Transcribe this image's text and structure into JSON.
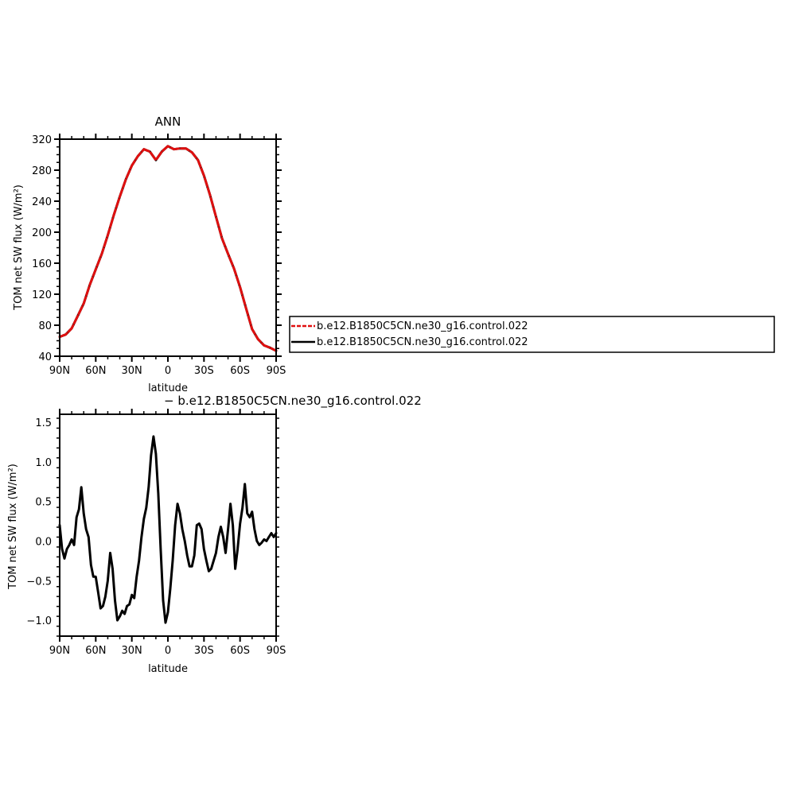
{
  "chart_data": [
    {
      "type": "line",
      "title": "ANN",
      "xlabel": "latitude",
      "ylabel": "TOM net SW flux (W/m²)",
      "xlim": [
        90,
        -90
      ],
      "ylim": [
        40,
        320
      ],
      "x_tick_values": [
        90,
        60,
        30,
        0,
        -30,
        -60,
        -90
      ],
      "x_tick_labels": [
        "90N",
        "60N",
        "30N",
        "0",
        "30S",
        "60S",
        "90S"
      ],
      "y_tick_values": [
        40,
        80,
        120,
        160,
        200,
        240,
        280,
        320
      ],
      "y_tick_labels": [
        "40",
        "80",
        "120",
        "160",
        "200",
        "240",
        "280",
        "320"
      ],
      "legend_placement": "right",
      "series": [
        {
          "name": "b.e12.B1850C5CN.ne30_g16.control.022",
          "color": "#e01010",
          "dash": "dashed",
          "x": [
            90,
            85,
            80,
            75,
            70,
            65,
            60,
            55,
            50,
            45,
            40,
            35,
            30,
            25,
            20,
            15,
            10,
            5,
            0,
            -5,
            -10,
            -15,
            -20,
            -25,
            -30,
            -35,
            -40,
            -45,
            -50,
            -55,
            -60,
            -65,
            -70,
            -75,
            -80,
            -85,
            -90
          ],
          "values": [
            65,
            68,
            76,
            92,
            108,
            132,
            152,
            172,
            196,
            222,
            246,
            268,
            286,
            298,
            307,
            304,
            293,
            304,
            311,
            307,
            308,
            308,
            303,
            293,
            273,
            248,
            220,
            192,
            172,
            153,
            129,
            102,
            75,
            62,
            54,
            51,
            47
          ]
        },
        {
          "name": "b.e12.B1850C5CN.ne30_g16.control.022",
          "color": "#000000",
          "dash": "solid",
          "x": [
            90,
            85,
            80,
            75,
            70,
            65,
            60,
            55,
            50,
            45,
            40,
            35,
            30,
            25,
            20,
            15,
            10,
            5,
            0,
            -5,
            -10,
            -15,
            -20,
            -25,
            -30,
            -35,
            -40,
            -45,
            -50,
            -55,
            -60,
            -65,
            -70,
            -75,
            -80,
            -85,
            -90
          ],
          "values": [
            65,
            68,
            76,
            92,
            108,
            132,
            152,
            172,
            196,
            222,
            246,
            268,
            286,
            298,
            307,
            304,
            293,
            304,
            311,
            307,
            308,
            308,
            303,
            293,
            273,
            248,
            220,
            192,
            172,
            153,
            129,
            102,
            75,
            62,
            54,
            51,
            47
          ]
        }
      ]
    },
    {
      "type": "line",
      "title": "b.e12.B1850C5CN.ne30_g16.control.022",
      "xlabel": "latitude",
      "ylabel": "TOM net SW flux (W/m²)",
      "xlim": [
        90,
        -90
      ],
      "ylim": [
        -1.2,
        1.6
      ],
      "x_tick_values": [
        90,
        60,
        30,
        0,
        -30,
        -60,
        -90
      ],
      "x_tick_labels": [
        "90N",
        "60N",
        "30N",
        "0",
        "30S",
        "60S",
        "90S"
      ],
      "y_tick_values": [
        -1.0,
        -0.5,
        0.0,
        0.5,
        1.0,
        1.5
      ],
      "y_tick_labels": [
        "−1.0",
        "−0.5",
        "0.0",
        "0.5",
        "1.0",
        "1.5"
      ],
      "series": [
        {
          "name": "b.e12.B1850C5CN.ne30_g16.control.022",
          "color": "#000000",
          "dash": "solid",
          "x": [
            90,
            88,
            86,
            84,
            82,
            80,
            78,
            76,
            74,
            72,
            70,
            68,
            66,
            64,
            62,
            60,
            58,
            56,
            54,
            52,
            50,
            48,
            46,
            44,
            42,
            40,
            38,
            36,
            34,
            32,
            30,
            28,
            26,
            24,
            22,
            20,
            18,
            16,
            14,
            12,
            10,
            8,
            6,
            4,
            2,
            0,
            -2,
            -4,
            -6,
            -8,
            -10,
            -12,
            -14,
            -16,
            -18,
            -20,
            -22,
            -24,
            -26,
            -28,
            -30,
            -32,
            -34,
            -36,
            -38,
            -40,
            -42,
            -44,
            -46,
            -48,
            -50,
            -52,
            -54,
            -56,
            -58,
            -60,
            -62,
            -64,
            -66,
            -68,
            -70,
            -72,
            -74,
            -76,
            -78,
            -80,
            -82,
            -84,
            -86,
            -88,
            -90
          ],
          "values": [
            0.2,
            -0.1,
            -0.22,
            -0.1,
            -0.05,
            0.02,
            -0.05,
            0.3,
            0.4,
            0.68,
            0.35,
            0.15,
            0.05,
            -0.3,
            -0.45,
            -0.45,
            -0.65,
            -0.85,
            -0.82,
            -0.7,
            -0.5,
            -0.15,
            -0.35,
            -0.75,
            -1.0,
            -0.95,
            -0.88,
            -0.92,
            -0.82,
            -0.8,
            -0.68,
            -0.72,
            -0.45,
            -0.25,
            0.05,
            0.28,
            0.42,
            0.68,
            1.08,
            1.32,
            1.1,
            0.6,
            -0.1,
            -0.75,
            -1.03,
            -0.9,
            -0.6,
            -0.25,
            0.2,
            0.47,
            0.35,
            0.15,
            0.0,
            -0.18,
            -0.32,
            -0.32,
            -0.18,
            0.2,
            0.22,
            0.15,
            -0.1,
            -0.25,
            -0.38,
            -0.35,
            -0.25,
            -0.15,
            0.05,
            0.18,
            0.05,
            -0.15,
            0.15,
            0.47,
            0.2,
            -0.35,
            -0.1,
            0.22,
            0.42,
            0.72,
            0.35,
            0.3,
            0.37,
            0.15,
            0.0,
            -0.05,
            -0.02,
            0.02,
            0.0,
            0.05,
            0.1,
            0.05,
            0.1
          ]
        }
      ]
    }
  ],
  "legend": {
    "items": [
      {
        "label": "b.e12.B1850C5CN.ne30_g16.control.022",
        "color": "#e01010",
        "dash": "dashed"
      },
      {
        "label": "b.e12.B1850C5CN.ne30_g16.control.022",
        "color": "#000000",
        "dash": "solid"
      }
    ]
  },
  "diff_caption": "−  b.e12.B1850C5CN.ne30_g16.control.022"
}
